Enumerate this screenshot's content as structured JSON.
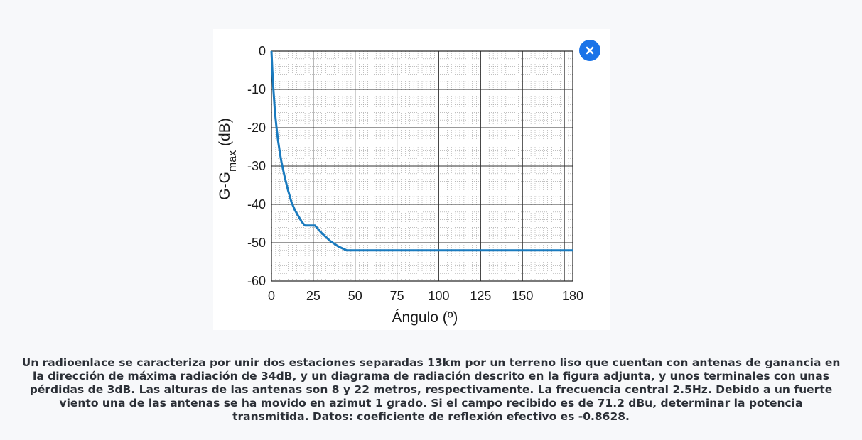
{
  "close": {
    "icon": "close-icon"
  },
  "problem": {
    "text": "Un radioenlace se caracteriza por unir dos estaciones separadas 13km por un terreno liso que cuentan con antenas de ganancia en la dirección de máxima radiación de 34dB, y un diagrama de radiación descrito en la figura adjunta, y unos terminales con unas pérdidas de 3dB. Las alturas de las antenas son 8 y 22 metros, respectivamente. La frecuencia central 2.5Hz. Debido a un fuerte viento una de las antenas se ha movido en azimut 1 grado. Si el campo recibido es de 71.2 dBu, determinar la potencia transmitida. Datos: coeficiente de reflexión efectivo es -0.8628."
  },
  "colors": {
    "accent": "#1a73e8",
    "curve": "#1a7bbf"
  },
  "chart_data": {
    "type": "line",
    "xlabel": "Ángulo (º)",
    "ylabel_main": "G-G",
    "ylabel_sub": "max",
    "ylabel_unit": " (dB)",
    "xlim": [
      0,
      180
    ],
    "ylim": [
      -60,
      0
    ],
    "xticks": [
      0,
      25,
      50,
      75,
      100,
      125,
      150,
      180
    ],
    "yticks": [
      0,
      -10,
      -20,
      -30,
      -40,
      -50,
      -60
    ],
    "grid": true,
    "series": [
      {
        "x": [
          0,
          0.5,
          1,
          2,
          3,
          4,
          5,
          6,
          8,
          10,
          12,
          14,
          16,
          18,
          20,
          22,
          26,
          30,
          35,
          40,
          45,
          48,
          50,
          60,
          80,
          100,
          120,
          140,
          160,
          180
        ],
        "y": [
          0,
          -5,
          -9,
          -15.5,
          -20,
          -23.5,
          -26.5,
          -29,
          -33,
          -36.5,
          -39.5,
          -41.5,
          -43,
          -44.5,
          -45.5,
          -45.5,
          -45.5,
          -47.5,
          -49.5,
          -51,
          -52,
          -52,
          -52,
          -52,
          -52,
          -52,
          -52,
          -52,
          -52,
          -52
        ]
      }
    ]
  }
}
